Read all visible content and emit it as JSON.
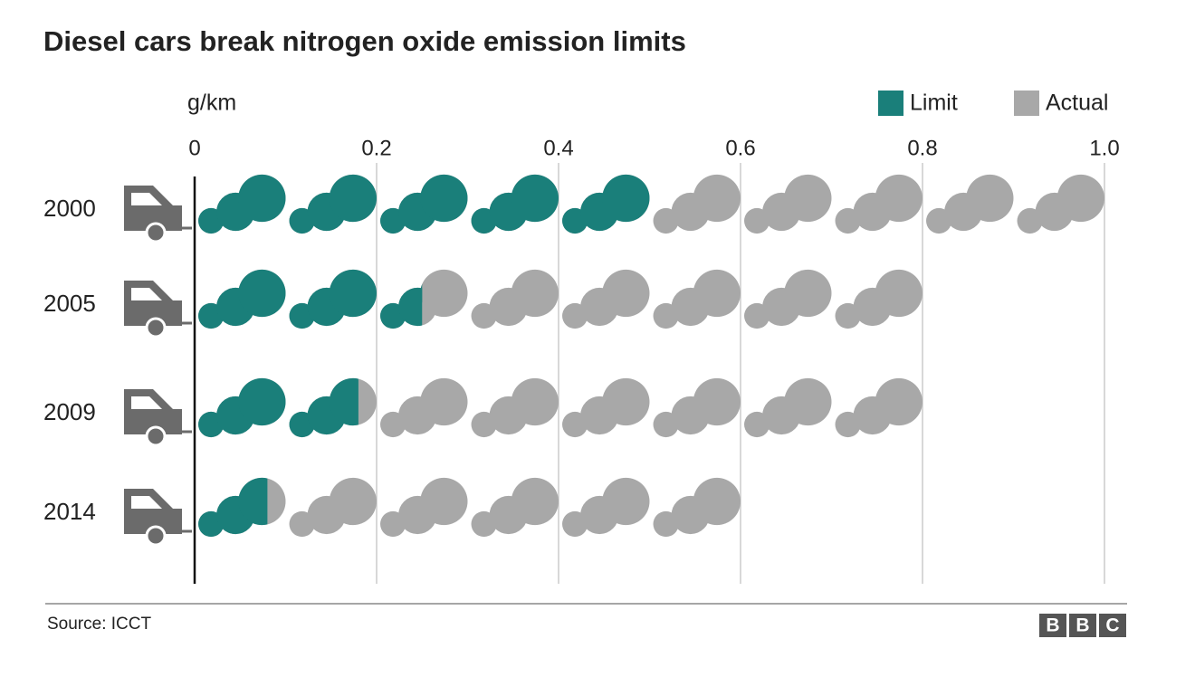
{
  "chart_data": {
    "type": "bar",
    "title": "Diesel cars break nitrogen oxide emission limits",
    "x_label": "g/km",
    "categories": [
      "2000",
      "2005",
      "2009",
      "2014"
    ],
    "series": [
      {
        "name": "Limit",
        "color": "#1a7f7a",
        "values": [
          0.5,
          0.25,
          0.18,
          0.08
        ]
      },
      {
        "name": "Actual",
        "color": "#a8a8a8",
        "values": [
          1.0,
          0.8,
          0.8,
          0.6
        ]
      }
    ],
    "xlim": [
      0,
      1
    ],
    "xticks": [
      0,
      0.2,
      0.4,
      0.6,
      0.8,
      {
        "value": 1,
        "label": "1.0"
      }
    ],
    "grid": true,
    "legend": "top-right",
    "source": "Source: ICCT",
    "logo": [
      "B",
      "B",
      "C"
    ]
  }
}
